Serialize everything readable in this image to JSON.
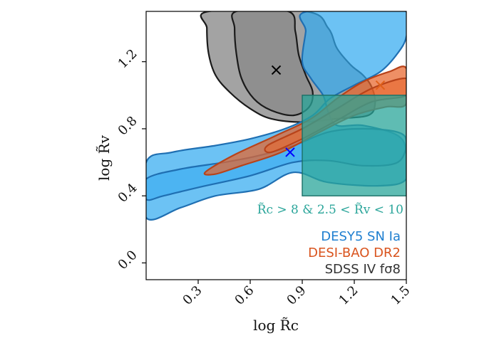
{
  "chart_data": {
    "type": "contour",
    "xlabel": "log R̃c",
    "ylabel": "log R̃v",
    "xlim": [
      0.0,
      1.5
    ],
    "ylim": [
      -0.1,
      1.5
    ],
    "xticks": [
      {
        "value": 0.3,
        "label": "0.3"
      },
      {
        "value": 0.6,
        "label": "0.6"
      },
      {
        "value": 0.9,
        "label": "0.9"
      },
      {
        "value": 1.2,
        "label": "1.2"
      },
      {
        "value": 1.5,
        "label": "1.5"
      }
    ],
    "yticks": [
      {
        "value": 0.0,
        "label": "0.0"
      },
      {
        "value": 0.4,
        "label": "0.4"
      },
      {
        "value": 0.8,
        "label": "0.8"
      },
      {
        "value": 1.2,
        "label": "1.2"
      }
    ],
    "grid": false,
    "legend_position": "bottom-right",
    "region": {
      "label": "R̃c > 8 & 2.5 < R̃v < 10",
      "x": [
        0.9,
        1.5
      ],
      "y": [
        0.4,
        1.0
      ],
      "color": "#2aa59a"
    },
    "series": [
      {
        "name": "SDSS IV fσ8",
        "color": "#7f7f7f",
        "edge": "#1a1a1a",
        "best_fit": {
          "x": 0.75,
          "y": 1.15
        },
        "marker_color": "#000000",
        "contour_outer": [
          [
            0.36,
            1.5
          ],
          [
            0.92,
            1.5
          ],
          [
            1.05,
            1.4
          ],
          [
            1.1,
            1.28
          ],
          [
            1.18,
            1.18
          ],
          [
            1.25,
            1.12
          ],
          [
            1.3,
            1.05
          ],
          [
            1.32,
            0.95
          ],
          [
            1.28,
            0.88
          ],
          [
            1.1,
            0.86
          ],
          [
            0.9,
            0.84
          ],
          [
            0.72,
            0.86
          ],
          [
            0.6,
            0.92
          ],
          [
            0.48,
            1.02
          ],
          [
            0.4,
            1.12
          ],
          [
            0.36,
            1.25
          ],
          [
            0.35,
            1.4
          ]
        ],
        "contour_inner": [
          [
            0.52,
            1.5
          ],
          [
            0.82,
            1.5
          ],
          [
            0.86,
            1.38
          ],
          [
            0.88,
            1.24
          ],
          [
            0.92,
            1.12
          ],
          [
            0.96,
            1.02
          ],
          [
            0.94,
            0.93
          ],
          [
            0.85,
            0.88
          ],
          [
            0.72,
            0.91
          ],
          [
            0.62,
            0.98
          ],
          [
            0.55,
            1.1
          ],
          [
            0.52,
            1.25
          ],
          [
            0.51,
            1.4
          ]
        ]
      },
      {
        "name": "DESY5 SN Ia",
        "color": "#33aaf0",
        "edge": "#1f6fb2",
        "best_fit": {
          "x": 0.83,
          "y": 0.66
        },
        "marker_color": "#0000ff",
        "contour_outer": [
          [
            0.0,
            0.6
          ],
          [
            0.15,
            0.66
          ],
          [
            0.4,
            0.7
          ],
          [
            0.6,
            0.74
          ],
          [
            0.8,
            0.8
          ],
          [
            0.96,
            0.88
          ],
          [
            1.06,
            0.98
          ],
          [
            1.2,
            1.06
          ],
          [
            1.35,
            1.14
          ],
          [
            1.45,
            1.25
          ],
          [
            1.5,
            1.35
          ],
          [
            1.5,
            1.5
          ],
          [
            0.93,
            1.5
          ],
          [
            0.92,
            1.38
          ],
          [
            0.9,
            1.2
          ],
          [
            0.95,
            1.1
          ],
          [
            1.02,
            1.0
          ],
          [
            1.05,
            0.9
          ],
          [
            1.1,
            0.82
          ],
          [
            1.25,
            0.82
          ],
          [
            1.45,
            0.76
          ],
          [
            1.5,
            0.66
          ],
          [
            1.5,
            0.5
          ],
          [
            1.35,
            0.46
          ],
          [
            1.05,
            0.48
          ],
          [
            0.85,
            0.54
          ],
          [
            0.65,
            0.44
          ],
          [
            0.4,
            0.4
          ],
          [
            0.2,
            0.33
          ],
          [
            0.0,
            0.27
          ]
        ],
        "contour_inner": [
          [
            0.0,
            0.5
          ],
          [
            0.2,
            0.56
          ],
          [
            0.45,
            0.6
          ],
          [
            0.65,
            0.64
          ],
          [
            0.85,
            0.7
          ],
          [
            1.05,
            0.78
          ],
          [
            1.25,
            0.8
          ],
          [
            1.45,
            0.78
          ],
          [
            1.5,
            0.72
          ],
          [
            1.45,
            0.6
          ],
          [
            1.25,
            0.58
          ],
          [
            1.05,
            0.61
          ],
          [
            0.85,
            0.6
          ],
          [
            0.6,
            0.52
          ],
          [
            0.3,
            0.45
          ],
          [
            0.1,
            0.4
          ],
          [
            0.0,
            0.38
          ]
        ]
      },
      {
        "name": "DESI-BAO DR2",
        "color": "#e8642a",
        "edge": "#b8431a",
        "best_fit": {
          "x": 1.35,
          "y": 1.06
        },
        "marker_color": "#e0601a",
        "contour_outer": [
          [
            0.34,
            0.54
          ],
          [
            0.5,
            0.64
          ],
          [
            0.75,
            0.76
          ],
          [
            0.95,
            0.86
          ],
          [
            1.1,
            0.98
          ],
          [
            1.25,
            1.08
          ],
          [
            1.4,
            1.14
          ],
          [
            1.5,
            1.16
          ],
          [
            1.5,
            0.95
          ],
          [
            1.38,
            0.93
          ],
          [
            1.2,
            0.88
          ],
          [
            1.0,
            0.78
          ],
          [
            0.78,
            0.66
          ],
          [
            0.55,
            0.58
          ],
          [
            0.4,
            0.53
          ]
        ],
        "contour_inner": [
          [
            0.7,
            0.7
          ],
          [
            0.9,
            0.8
          ],
          [
            1.1,
            0.92
          ],
          [
            1.3,
            1.04
          ],
          [
            1.5,
            1.1
          ],
          [
            1.5,
            1.0
          ],
          [
            1.3,
            0.96
          ],
          [
            1.1,
            0.85
          ],
          [
            0.9,
            0.74
          ],
          [
            0.72,
            0.66
          ]
        ]
      }
    ]
  }
}
